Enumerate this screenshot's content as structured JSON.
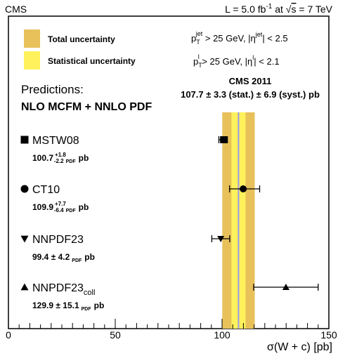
{
  "header": {
    "left": "CMS",
    "right_prefix": "L = 5.0 fb",
    "right_exp": "-1",
    "right_mid": " at ",
    "right_sqrt": "√",
    "right_s": "s",
    "right_suffix": " = 7 TeV"
  },
  "legend": {
    "total_label": "Total uncertainty",
    "stat_label": "Statistical uncertainty",
    "total_color": "#E8C15A",
    "stat_color": "#FFF15C"
  },
  "cuts": {
    "line1": {
      "p": "p",
      "sub": "T",
      "sup": "jet",
      "mid": " > 25 GeV, |η",
      "sup2": "jet",
      "end": "| < 2.5"
    },
    "line2": {
      "p": "p",
      "sub": "T",
      "sup": "l",
      "mid": " > 25 GeV, |η",
      "sup2": "l",
      "end": "| < 2.1"
    }
  },
  "predictions_title": "Predictions:",
  "predictions_subtitle": "NLO MCFM + NNLO PDF",
  "measurement": {
    "title": "CMS 2011",
    "text": "107.7 ± 3.3  (stat.) ± 6.9  (syst.) pb"
  },
  "chart_data": {
    "type": "scatter",
    "xlabel": "σ(W + c) [pb]",
    "xlim": [
      0,
      150
    ],
    "xticks": [
      "0",
      "50",
      "100",
      "150"
    ],
    "measurement": {
      "value": 107.7,
      "stat": 3.3,
      "total": 7.6
    },
    "points": [
      {
        "name": "MSTW08",
        "value": 100.7,
        "err_plus": 1.8,
        "err_minus": 2.2,
        "marker": "square",
        "label_value": "100.7",
        "label_plus": "+1.8",
        "label_minus": "-2.2",
        "label_tail": "pb",
        "label_sym": ""
      },
      {
        "name": "CT10",
        "value": 109.9,
        "err_plus": 7.7,
        "err_minus": 6.4,
        "marker": "circle",
        "label_value": "109.9",
        "label_plus": "+7.7",
        "label_minus": "-6.4",
        "label_tail": "pb",
        "label_sym": ""
      },
      {
        "name": "NNPDF23",
        "value": 99.4,
        "err_plus": 4.2,
        "err_minus": 4.2,
        "marker": "triangle-down",
        "label_value": "99.4 ± 4.2",
        "label_plus": "",
        "label_minus": "",
        "label_tail": "pb",
        "label_sym": "PDF"
      },
      {
        "name": "NNPDF23",
        "name_sub": "coll",
        "value": 129.9,
        "err_plus": 15.1,
        "err_minus": 15.1,
        "marker": "triangle-up",
        "label_value": "129.9 ± 15.1",
        "label_plus": "",
        "label_minus": "",
        "label_tail": "pb",
        "label_sym": "PDF"
      }
    ],
    "pdf_sub": "PDF"
  }
}
